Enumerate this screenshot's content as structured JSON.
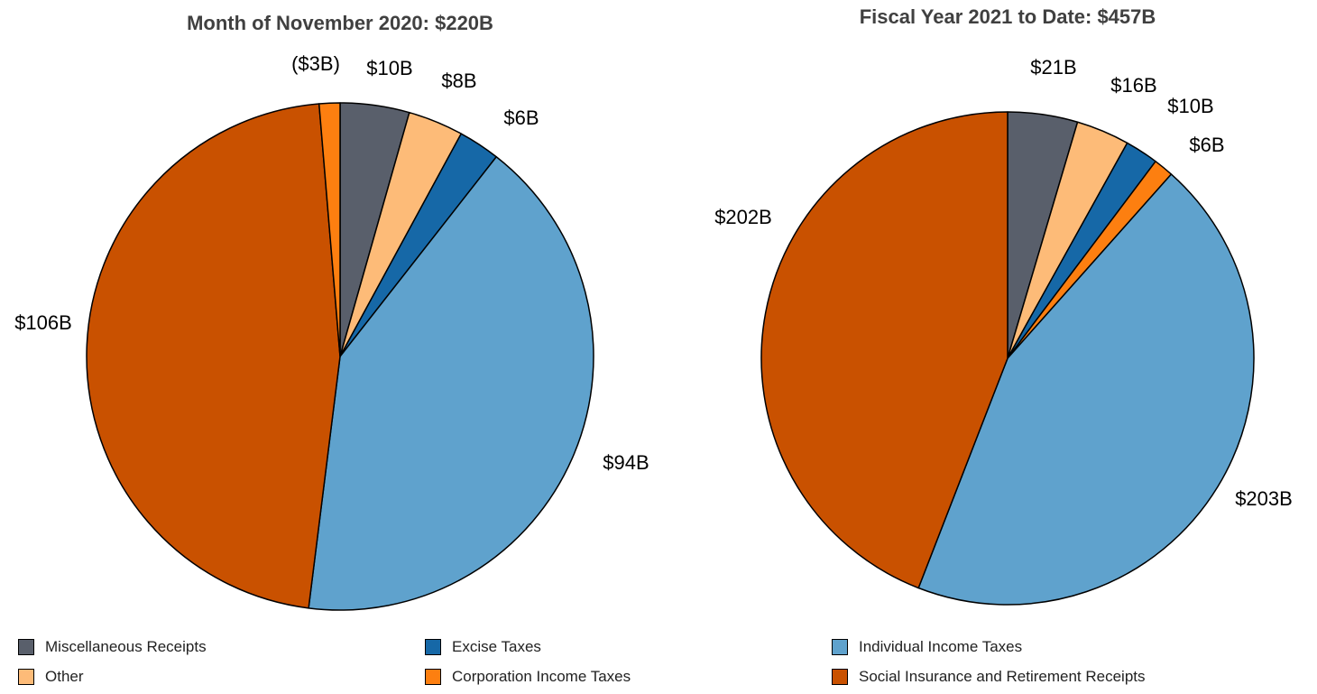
{
  "categories": [
    "Miscellaneous Receipts",
    "Other",
    "Excise Taxes",
    "Corporation Income Taxes",
    "Individual Income Taxes",
    "Social Insurance and Retirement Receipts"
  ],
  "colors": {
    "Miscellaneous Receipts": "#595f6b",
    "Other": "#fdbb78",
    "Excise Taxes": "#1668a7",
    "Corporation Income Taxes": "#fd7f10",
    "Individual Income Taxes": "#5fa2cd",
    "Social Insurance and Retirement Receipts": "#c95100"
  },
  "legend": {
    "items": [
      {
        "label": "Miscellaneous Receipts",
        "color": "#595f6b"
      },
      {
        "label": "Excise Taxes",
        "color": "#1668a7"
      },
      {
        "label": "Individual Income Taxes",
        "color": "#5fa2cd"
      },
      {
        "label": "Other",
        "color": "#fdbb78"
      },
      {
        "label": "Corporation Income Taxes",
        "color": "#fd7f10"
      },
      {
        "label": "Social Insurance and Retirement Receipts",
        "color": "#c95100"
      }
    ]
  },
  "chart_data": [
    {
      "type": "pie",
      "title": "Month of November 2020: $220B",
      "categories": [
        "Miscellaneous Receipts",
        "Other",
        "Excise Taxes",
        "Individual Income Taxes",
        "Social Insurance and Retirement Receipts",
        "Corporation Income Taxes"
      ],
      "values": [
        10,
        8,
        6,
        94,
        106,
        3
      ],
      "labels": [
        "$10B",
        "$8B",
        "$6B",
        "$94B",
        "$106B",
        "($3B)"
      ],
      "legend_position": "bottom"
    },
    {
      "type": "pie",
      "title": "Fiscal Year 2021 to Date: $457B",
      "categories": [
        "Miscellaneous Receipts",
        "Other",
        "Excise Taxes",
        "Corporation Income Taxes",
        "Individual Income Taxes",
        "Social Insurance and Retirement Receipts"
      ],
      "values": [
        21,
        16,
        10,
        6,
        203,
        202
      ],
      "labels": [
        "$21B",
        "$16B",
        "$10B",
        "$6B",
        "$203B",
        "$202B"
      ],
      "legend_position": "bottom"
    }
  ]
}
